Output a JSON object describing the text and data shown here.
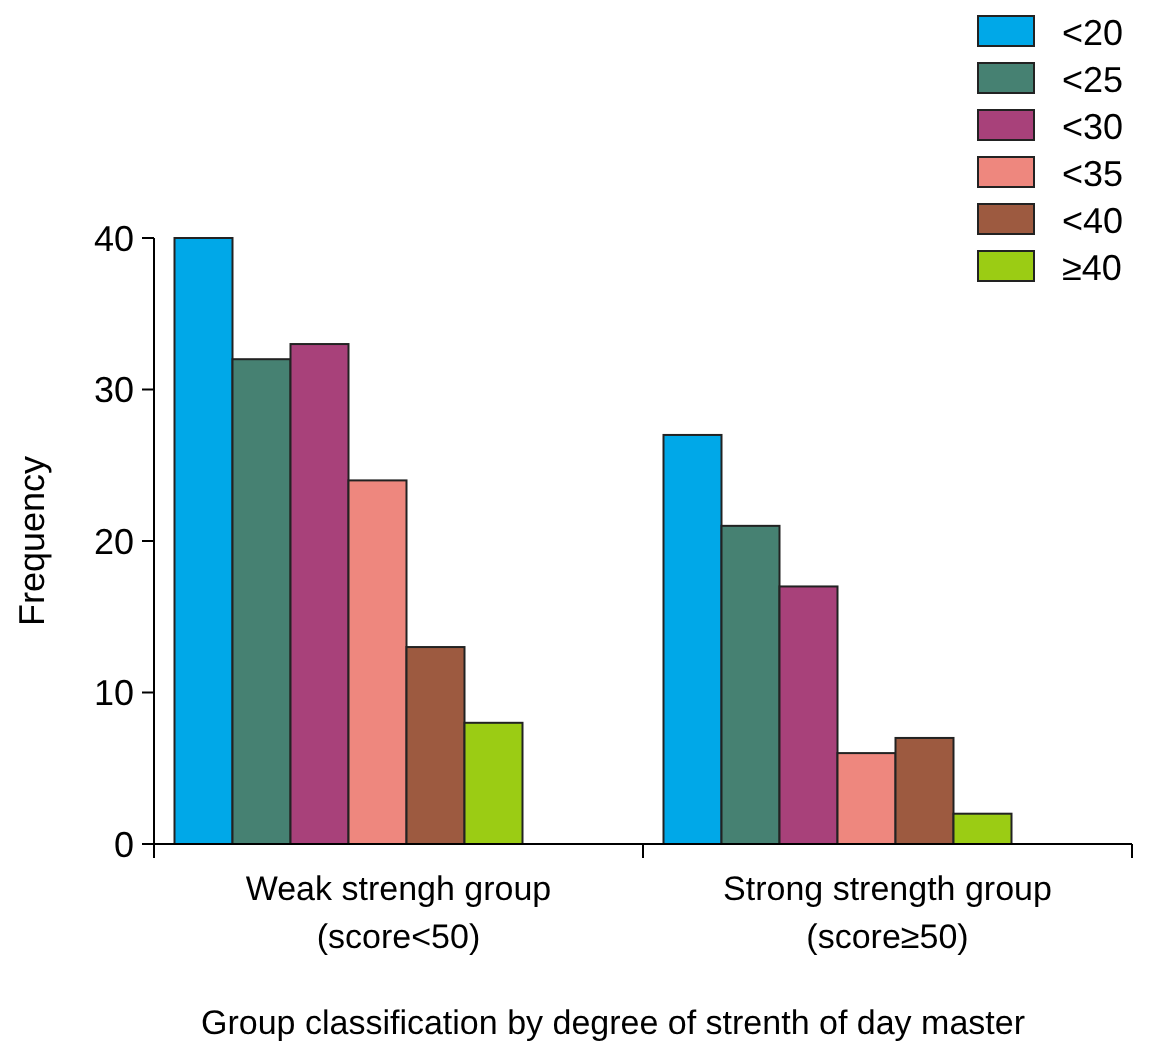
{
  "chart_data": {
    "type": "bar",
    "categories": [
      "Weak strengh group\n(score<50)",
      "Strong strength group\n(score≥50)"
    ],
    "series": [
      {
        "name": "<20",
        "color": "#00a8e8",
        "values": [
          40,
          27
        ]
      },
      {
        "name": "<25",
        "color": "#468172",
        "values": [
          32,
          21
        ]
      },
      {
        "name": "<30",
        "color": "#a8417a",
        "values": [
          33,
          17
        ]
      },
      {
        "name": "<35",
        "color": "#ee877e",
        "values": [
          24,
          6
        ]
      },
      {
        "name": "<40",
        "color": "#9d5a40",
        "values": [
          13,
          7
        ]
      },
      {
        "name": "≥40",
        "color": "#9bcc14",
        "values": [
          8,
          2
        ]
      }
    ],
    "ylim": [
      0,
      40
    ],
    "yticks": [
      0,
      10,
      20,
      30,
      40
    ],
    "xlabel": "Group classification by degree of strenth of day master",
    "ylabel": "Frequency",
    "legend": "top right",
    "grid": false
  }
}
